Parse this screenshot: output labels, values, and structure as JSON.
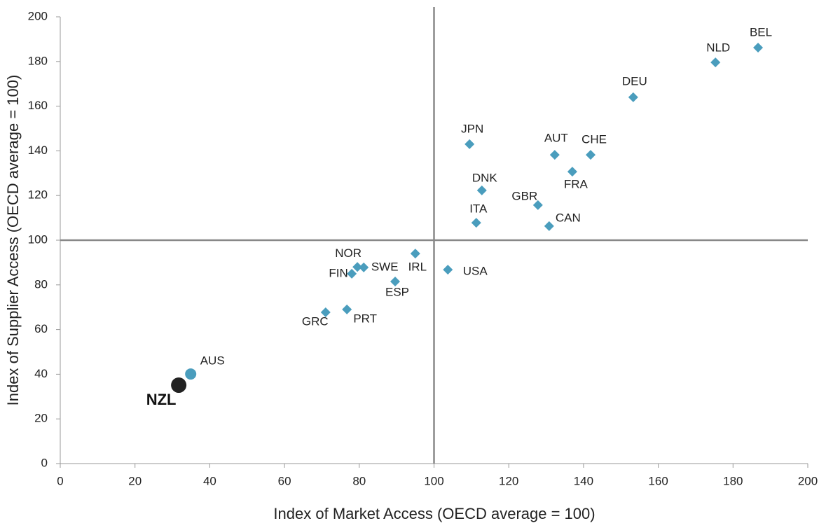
{
  "chart_data": {
    "type": "scatter",
    "x_label": "Index of Market Access (OECD average = 100)",
    "y_label": "Index of Supplier Access (OECD average = 100)",
    "xlim": [
      0,
      200
    ],
    "ylim": [
      0,
      200
    ],
    "xticks": [
      0,
      20,
      40,
      60,
      80,
      100,
      120,
      140,
      160,
      180,
      200
    ],
    "yticks": [
      0,
      20,
      40,
      60,
      80,
      100,
      120,
      140,
      160,
      180,
      200
    ],
    "reference_x": 100,
    "reference_y": 100,
    "points": [
      {
        "label": "BEL",
        "x": 186.7,
        "y": 186.2,
        "marker": "diamond",
        "color": "#4a9dbd"
      },
      {
        "label": "NLD",
        "x": 175.3,
        "y": 179.6,
        "marker": "diamond",
        "color": "#4a9dbd"
      },
      {
        "label": "DEU",
        "x": 153.3,
        "y": 164,
        "marker": "diamond",
        "color": "#4a9dbd"
      },
      {
        "label": "JPN",
        "x": 109.5,
        "y": 143,
        "marker": "diamond",
        "color": "#4a9dbd"
      },
      {
        "label": "AUT",
        "x": 132.3,
        "y": 138.2,
        "marker": "diamond",
        "color": "#4a9dbd"
      },
      {
        "label": "CHE",
        "x": 141.9,
        "y": 138.2,
        "marker": "diamond",
        "color": "#4a9dbd"
      },
      {
        "label": "FRA",
        "x": 137,
        "y": 130.7,
        "marker": "diamond",
        "color": "#4a9dbd"
      },
      {
        "label": "DNK",
        "x": 112.8,
        "y": 122.3,
        "marker": "diamond",
        "color": "#4a9dbd"
      },
      {
        "label": "GBR",
        "x": 127.8,
        "y": 115.7,
        "marker": "diamond",
        "color": "#4a9dbd"
      },
      {
        "label": "ITA",
        "x": 111.3,
        "y": 107.8,
        "marker": "diamond",
        "color": "#4a9dbd"
      },
      {
        "label": "CAN",
        "x": 130.8,
        "y": 106.3,
        "marker": "diamond",
        "color": "#4a9dbd"
      },
      {
        "label": "IRL",
        "x": 95,
        "y": 94,
        "marker": "diamond",
        "color": "#4a9dbd"
      },
      {
        "label": "USA",
        "x": 103.7,
        "y": 86.8,
        "marker": "diamond",
        "color": "#4a9dbd"
      },
      {
        "label": "NOR",
        "x": 79.5,
        "y": 88,
        "marker": "diamond",
        "color": "#4a9dbd"
      },
      {
        "label": "SWE",
        "x": 81.2,
        "y": 87.8,
        "marker": "diamond",
        "color": "#4a9dbd"
      },
      {
        "label": "FIN",
        "x": 78,
        "y": 85,
        "marker": "diamond",
        "color": "#4a9dbd"
      },
      {
        "label": "ESP",
        "x": 89.6,
        "y": 81.5,
        "marker": "diamond",
        "color": "#4a9dbd"
      },
      {
        "label": "PRT",
        "x": 76.7,
        "y": 69,
        "marker": "diamond",
        "color": "#4a9dbd"
      },
      {
        "label": "GRC",
        "x": 71,
        "y": 67.7,
        "marker": "diamond",
        "color": "#4a9dbd"
      },
      {
        "label": "AUS",
        "x": 34.9,
        "y": 40.1,
        "marker": "circle",
        "color": "#4a9dbd"
      },
      {
        "label": "NZL",
        "x": 31.7,
        "y": 35.1,
        "marker": "large-circle",
        "color": "#222222"
      }
    ]
  }
}
